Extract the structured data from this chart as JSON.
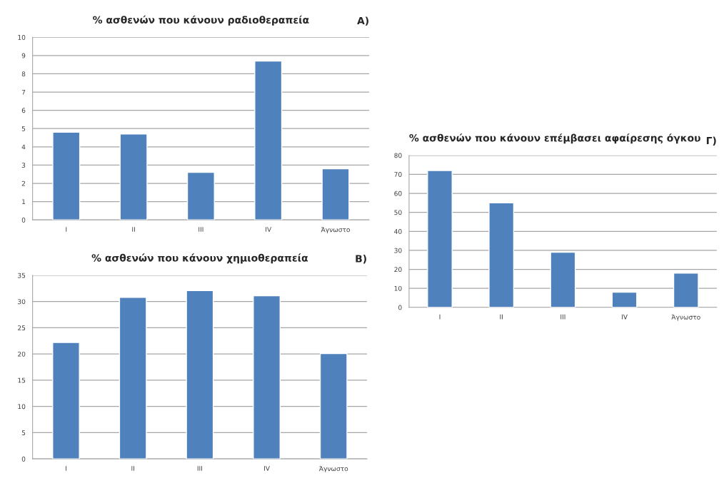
{
  "chart_data": [
    {
      "type": "bar",
      "title": "% ασθενών που κάνουν ραδιοθεραπεία",
      "annotations": [
        "A)"
      ],
      "categories": [
        "I",
        "II",
        "III",
        "IV",
        "Άγνωστο"
      ],
      "values": [
        4.8,
        4.7,
        2.6,
        8.7,
        2.8
      ],
      "color": "#4f81bd",
      "ylim": [
        0,
        10
      ],
      "yticks": [
        0,
        1,
        2,
        3,
        4,
        5,
        6,
        7,
        8,
        9,
        10
      ],
      "grid": "y"
    },
    {
      "type": "bar",
      "title": "% ασθενών που κάνουν χημιοθεραπεία",
      "annotations": [
        "B)"
      ],
      "categories": [
        "I",
        "II",
        "III",
        "IV",
        "Άγνωστο"
      ],
      "values": [
        22.2,
        30.8,
        32.1,
        31.1,
        20.1
      ],
      "color": "#4f81bd",
      "ylim": [
        0,
        35
      ],
      "yticks": [
        0,
        5,
        10,
        15,
        20,
        25,
        30,
        35
      ],
      "grid": "y"
    },
    {
      "type": "bar",
      "title": "% ασθενών που κάνουν επέμβασει αφαίρεσης όγκου",
      "annotations": [
        "Γ)"
      ],
      "categories": [
        "I",
        "II",
        "III",
        "IV",
        "Άγνωστο"
      ],
      "values": [
        72,
        55,
        29,
        8,
        18
      ],
      "color": "#4f81bd",
      "ylim": [
        0,
        80
      ],
      "yticks": [
        0,
        10,
        20,
        30,
        40,
        50,
        60,
        70,
        80
      ],
      "grid": "y"
    }
  ]
}
